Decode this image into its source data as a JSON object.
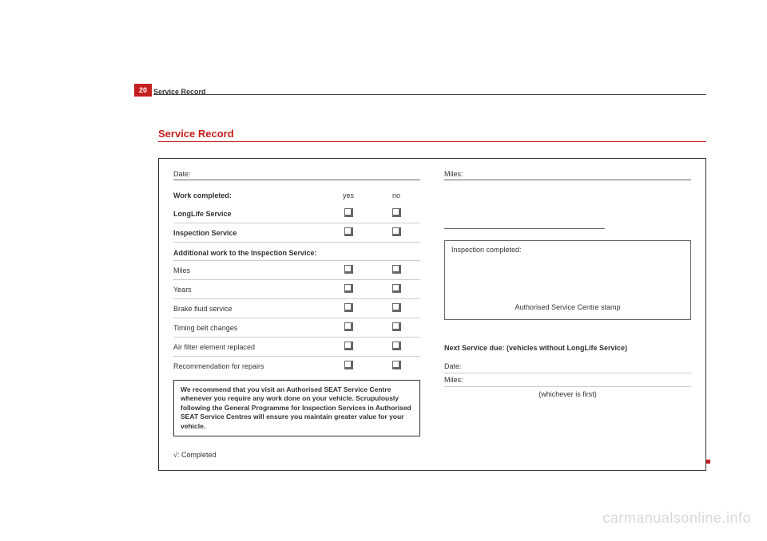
{
  "page_number": "20",
  "header_title": "Service Record",
  "title": "Service Record",
  "left": {
    "date_label": "Date:",
    "work_completed": "Work completed:",
    "yes": "yes",
    "no": "no",
    "longlife": "LongLife Service",
    "inspection": "Inspection Service",
    "additional_header": "Additional work to the Inspection Service:",
    "miles": "Miles",
    "years": "Years",
    "brake": "Brake fluid service",
    "timing": "Timing belt changes",
    "air_filter": "Air filter element replaced",
    "recommendation": "Recommendation for repairs",
    "note": "We recommend that you visit an Authorised SEAT Service Centre whenever you require any work done on your vehicle. Scrupulously following the General Programme for Inspection Services in Authorised SEAT Service Centres will ensure you maintain greater value for your vehicle.",
    "completed_legend": "√: Completed"
  },
  "right": {
    "miles_label": "Miles:",
    "inspection_completed": "Inspection completed:",
    "stamp_text": "Authorised Service Centre stamp",
    "next_service": "Next Service due: (vehicles without LongLife Service)",
    "date": "Date:",
    "miles2": "Miles:",
    "whichever": "(whichever is first)"
  },
  "watermark": "carmanualsonline.info"
}
